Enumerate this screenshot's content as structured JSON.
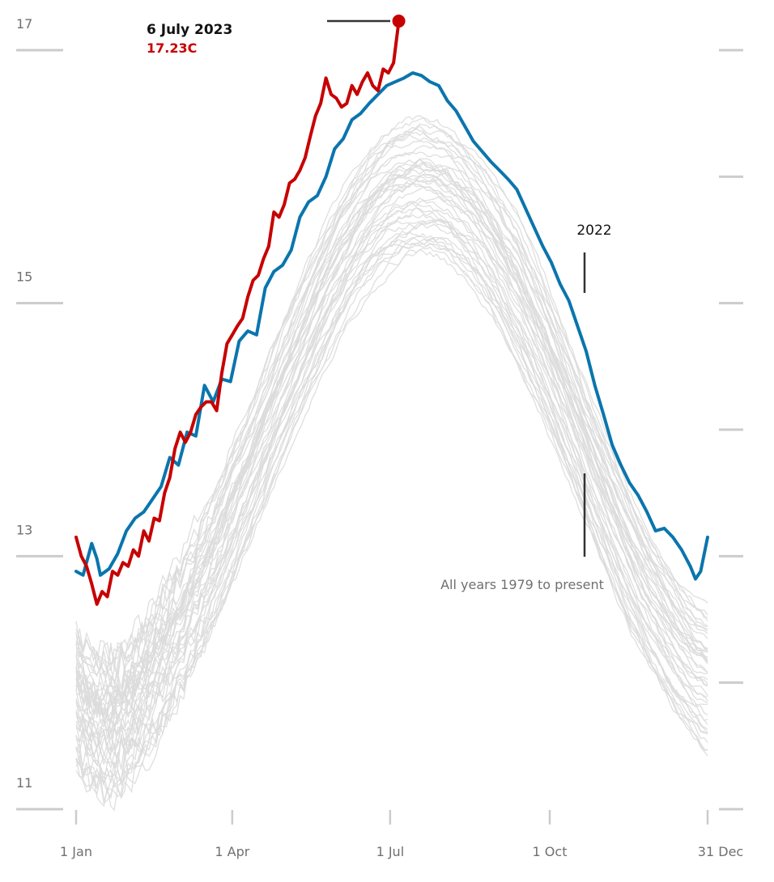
{
  "chart_data": {
    "type": "line",
    "title": "",
    "xlabel": "",
    "ylabel": "",
    "x_ticks": [
      "1 Jan",
      "1 Apr",
      "1 Jul",
      "1 Oct",
      "31 Dec"
    ],
    "x_tick_days": [
      1,
      91,
      182,
      274,
      365
    ],
    "y_ticks": [
      11,
      13,
      15,
      17
    ],
    "ylim": [
      11,
      17.2
    ],
    "xlim": [
      1,
      365
    ],
    "grid": false,
    "colors": {
      "y2023": "#c70000",
      "y2022": "#0a75ad",
      "background_years": "#dcdcdc",
      "ticks": "#cccccc"
    },
    "series": [
      {
        "name": "2023",
        "x": [
          1,
          4,
          7,
          10,
          13,
          16,
          19,
          22,
          25,
          28,
          31,
          34,
          37,
          40,
          43,
          46,
          49,
          52,
          55,
          58,
          61,
          64,
          67,
          70,
          73,
          76,
          79,
          82,
          85,
          88,
          91,
          94,
          97,
          100,
          103,
          106,
          109,
          112,
          115,
          118,
          121,
          124,
          127,
          130,
          133,
          136,
          139,
          142,
          145,
          148,
          151,
          154,
          157,
          160,
          163,
          166,
          169,
          172,
          175,
          178,
          181,
          184,
          187
        ],
        "y": [
          13.15,
          13.0,
          12.92,
          12.78,
          12.62,
          12.72,
          12.68,
          12.88,
          12.85,
          12.95,
          12.92,
          13.05,
          13.0,
          13.2,
          13.12,
          13.3,
          13.28,
          13.5,
          13.62,
          13.85,
          13.98,
          13.9,
          13.98,
          14.12,
          14.18,
          14.22,
          14.22,
          14.15,
          14.45,
          14.68,
          14.75,
          14.82,
          14.88,
          15.05,
          15.18,
          15.22,
          15.35,
          15.45,
          15.72,
          15.68,
          15.78,
          15.95,
          15.98,
          16.05,
          16.15,
          16.32,
          16.48,
          16.58,
          16.78,
          16.65,
          16.62,
          16.55,
          16.58,
          16.72,
          16.65,
          16.75,
          16.82,
          16.72,
          16.68,
          16.85,
          16.82,
          16.9,
          17.23
        ]
      },
      {
        "name": "2022",
        "x": [
          1,
          5,
          10,
          13,
          15,
          20,
          25,
          30,
          35,
          40,
          45,
          50,
          55,
          60,
          65,
          70,
          75,
          80,
          85,
          90,
          95,
          100,
          105,
          110,
          115,
          120,
          125,
          130,
          135,
          140,
          145,
          150,
          155,
          160,
          165,
          170,
          175,
          180,
          185,
          190,
          195,
          200,
          205,
          210,
          215,
          220,
          225,
          230,
          235,
          240,
          245,
          250,
          255,
          260,
          265,
          270,
          275,
          280,
          285,
          290,
          295,
          300,
          305,
          310,
          315,
          320,
          325,
          330,
          335,
          340,
          345,
          350,
          355,
          358,
          361,
          365
        ],
        "y": [
          12.88,
          12.85,
          13.1,
          12.98,
          12.85,
          12.9,
          13.02,
          13.2,
          13.3,
          13.35,
          13.45,
          13.55,
          13.78,
          13.72,
          13.98,
          13.95,
          14.35,
          14.22,
          14.4,
          14.38,
          14.7,
          14.78,
          14.75,
          15.12,
          15.25,
          15.3,
          15.42,
          15.68,
          15.8,
          15.85,
          16.0,
          16.22,
          16.3,
          16.45,
          16.5,
          16.58,
          16.65,
          16.72,
          16.75,
          16.78,
          16.82,
          16.8,
          16.75,
          16.72,
          16.6,
          16.52,
          16.4,
          16.28,
          16.2,
          16.12,
          16.05,
          15.98,
          15.9,
          15.75,
          15.6,
          15.45,
          15.32,
          15.15,
          15.02,
          14.82,
          14.62,
          14.35,
          14.12,
          13.88,
          13.72,
          13.58,
          13.48,
          13.35,
          13.2,
          13.22,
          13.15,
          13.05,
          12.92,
          12.82,
          12.88,
          13.15
        ]
      }
    ],
    "background_series_label": "All years 1979 to present",
    "annotations": {
      "peak_date": "6 July 2023",
      "peak_value": "17.23C",
      "peak_day": 187,
      "peak_temp": 17.23,
      "label_2022": "2022",
      "label_all_years": "All years 1979 to present"
    }
  }
}
